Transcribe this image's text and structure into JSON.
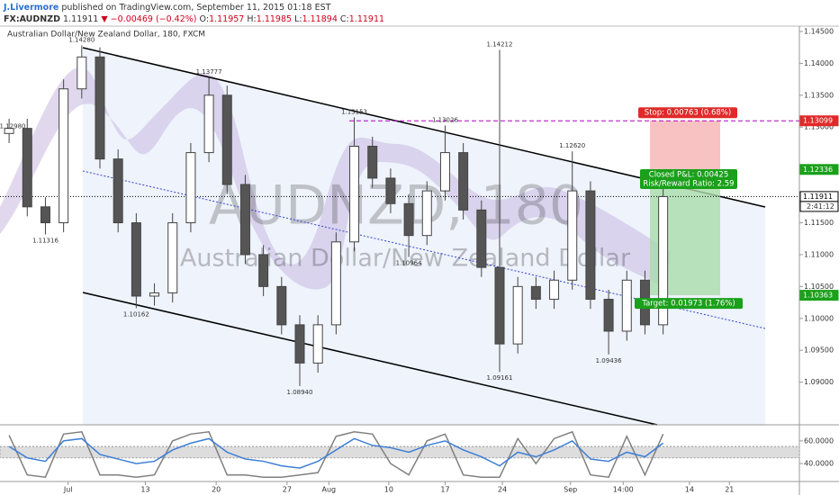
{
  "header": {
    "author": "J.Livermore",
    "published": "published on TradingView.com, September 11, 2015 01:18 EST",
    "symbol": "FX:AUDNZD",
    "last": "1.11911",
    "change": "▼ −0.00469 (−0.42%)",
    "open_label": "O:",
    "open": "1.11957",
    "high_label": "H:",
    "high": "1.11985",
    "low_label": "L:",
    "low": "1.11894",
    "close_label": "C:",
    "close": "1.11911"
  },
  "chart_data": [
    {
      "type": "candlestick",
      "title": "Australian Dollar/New Zealand Dollar, 180, FXCM",
      "watermark": "AUDNZD, 180",
      "watermark_sub": "Australian Dollar/New Zealand Dollar",
      "x": [
        1,
        3,
        5,
        7,
        9,
        11,
        13,
        15,
        17,
        19,
        21,
        23,
        25,
        27,
        29,
        31,
        33,
        35,
        37,
        39,
        41,
        43,
        45,
        47,
        49,
        51,
        53,
        55,
        57,
        59,
        61,
        63,
        65,
        67,
        69,
        71,
        73
      ],
      "open": [
        1.129,
        1.1298,
        1.1175,
        1.115,
        1.136,
        1.141,
        1.125,
        1.115,
        1.1035,
        1.104,
        1.115,
        1.126,
        1.135,
        1.121,
        1.11,
        1.105,
        1.099,
        1.093,
        1.099,
        1.112,
        1.127,
        1.122,
        1.118,
        1.113,
        1.12,
        1.126,
        1.117,
        1.108,
        1.096,
        1.105,
        1.103,
        1.106,
        1.12,
        1.103,
        1.098,
        1.106,
        1.099
      ],
      "high": [
        1.1313,
        1.1313,
        1.119,
        1.1375,
        1.1428,
        1.1425,
        1.1265,
        1.1165,
        1.1055,
        1.1165,
        1.1275,
        1.13777,
        1.1365,
        1.1225,
        1.1115,
        1.1065,
        1.1005,
        1.1005,
        1.1135,
        1.13153,
        1.1285,
        1.1235,
        1.1195,
        1.1215,
        1.13026,
        1.1275,
        1.1185,
        1.14212,
        1.1065,
        1.1065,
        1.1075,
        1.1262,
        1.1215,
        1.1045,
        1.1075,
        1.1075,
        1.1206
      ],
      "low": [
        1.1275,
        1.116,
        1.11316,
        1.1135,
        1.1345,
        1.1235,
        1.1135,
        1.10162,
        1.102,
        1.1025,
        1.1135,
        1.1245,
        1.1195,
        1.1085,
        1.1035,
        1.0975,
        1.0894,
        1.0915,
        1.0975,
        1.1105,
        1.1205,
        1.1165,
        1.10964,
        1.1115,
        1.1185,
        1.1155,
        1.1065,
        1.09161,
        1.0945,
        1.1015,
        1.1015,
        1.1045,
        1.1015,
        1.09436,
        1.0965,
        1.0975,
        1.0975
      ],
      "close": [
        1.1298,
        1.1175,
        1.115,
        1.136,
        1.141,
        1.125,
        1.115,
        1.1035,
        1.104,
        1.115,
        1.126,
        1.135,
        1.121,
        1.11,
        1.105,
        1.099,
        1.093,
        1.099,
        1.112,
        1.127,
        1.122,
        1.118,
        1.113,
        1.12,
        1.126,
        1.117,
        1.108,
        1.096,
        1.105,
        1.103,
        1.106,
        1.12,
        1.103,
        1.098,
        1.106,
        1.099,
        1.1191
      ],
      "xlim": [
        0,
        88
      ],
      "xticks": [
        {
          "value": 7.5,
          "label": "Jul"
        },
        {
          "value": 16,
          "label": "13"
        },
        {
          "value": 23.8,
          "label": "20"
        },
        {
          "value": 31.6,
          "label": "27"
        },
        {
          "value": 36.2,
          "label": "Aug"
        },
        {
          "value": 42.8,
          "label": "10"
        },
        {
          "value": 49,
          "label": "17"
        },
        {
          "value": 55.3,
          "label": "24"
        },
        {
          "value": 62.8,
          "label": "Sep"
        },
        {
          "value": 68.6,
          "label": "14:00"
        },
        {
          "value": 75.9,
          "label": "14"
        },
        {
          "value": 80.3,
          "label": "21"
        }
      ],
      "ylim": [
        1.0836,
        1.1457
      ],
      "yticks": [
        {
          "value": 1.145,
          "label": "1.14500"
        },
        {
          "value": 1.14,
          "label": "1.14000"
        },
        {
          "value": 1.135,
          "label": "1.13500"
        },
        {
          "value": 1.13,
          "label": "1.13000"
        },
        {
          "value": 1.115,
          "label": "1.11500"
        },
        {
          "value": 1.11,
          "label": "1.11000"
        },
        {
          "value": 1.105,
          "label": "1.10500"
        },
        {
          "value": 1.1,
          "label": "1.10000"
        },
        {
          "value": 1.095,
          "label": "1.09500"
        },
        {
          "value": 1.09,
          "label": "1.09000"
        }
      ],
      "annotations": [
        {
          "value": 1.1298,
          "label": "1.12980"
        },
        {
          "value": 1.11316,
          "label": "1.11316"
        },
        {
          "value": 1.1428,
          "label": "1.14280"
        },
        {
          "value": 1.10162,
          "label": "1.10162"
        },
        {
          "value": 1.13777,
          "label": "1.13777"
        },
        {
          "value": 1.0894,
          "label": "1.08940"
        },
        {
          "value": 1.13153,
          "label": "1.13153"
        },
        {
          "value": 1.10964,
          "label": "1.10964"
        },
        {
          "value": 1.13026,
          "label": "1.13026"
        },
        {
          "value": 1.09161,
          "label": "1.09161"
        },
        {
          "value": 1.14212,
          "label": "1.14212"
        },
        {
          "value": 1.1262,
          "label": "1.12620"
        },
        {
          "value": 1.09436,
          "label": "1.09436"
        }
      ],
      "last_price": {
        "value": 1.11911,
        "label": "1.11911",
        "countdown": "2:41:12"
      },
      "position": {
        "stop": {
          "value": 1.13099,
          "label": "1.13099"
        },
        "entry": {
          "value": 1.12336,
          "label": "1.12336"
        },
        "target": {
          "value": 1.10363,
          "label": "1.10363"
        },
        "stop_text": "Stop: 0.00763 (0.68%)",
        "pnl_text": "Closed P&L: 0.00425",
        "rr_text": "Risk/Reward Ratio: 2.59",
        "target_text": "Target: 0.01973 (1.76%)"
      }
    },
    {
      "type": "line",
      "ylim": [
        25,
        71
      ],
      "yticks": [
        {
          "value": 60,
          "label": "60.0000"
        },
        {
          "value": 40,
          "label": "40.0000"
        }
      ],
      "band": [
        45,
        55
      ],
      "series": [
        {
          "color": "#3d7fd6",
          "values": [
            55,
            45,
            42,
            60,
            62,
            48,
            44,
            40,
            42,
            52,
            58,
            62,
            50,
            44,
            42,
            38,
            36,
            42,
            52,
            62,
            56,
            54,
            50,
            56,
            60,
            52,
            46,
            38,
            50,
            46,
            52,
            60,
            44,
            42,
            50,
            46,
            58
          ]
        },
        {
          "color": "#808080",
          "values": [
            65,
            30,
            28,
            66,
            68,
            30,
            30,
            28,
            30,
            60,
            66,
            68,
            30,
            30,
            28,
            28,
            30,
            32,
            64,
            68,
            66,
            40,
            30,
            60,
            66,
            30,
            28,
            28,
            62,
            40,
            62,
            68,
            30,
            28,
            64,
            30,
            66
          ]
        }
      ]
    }
  ]
}
